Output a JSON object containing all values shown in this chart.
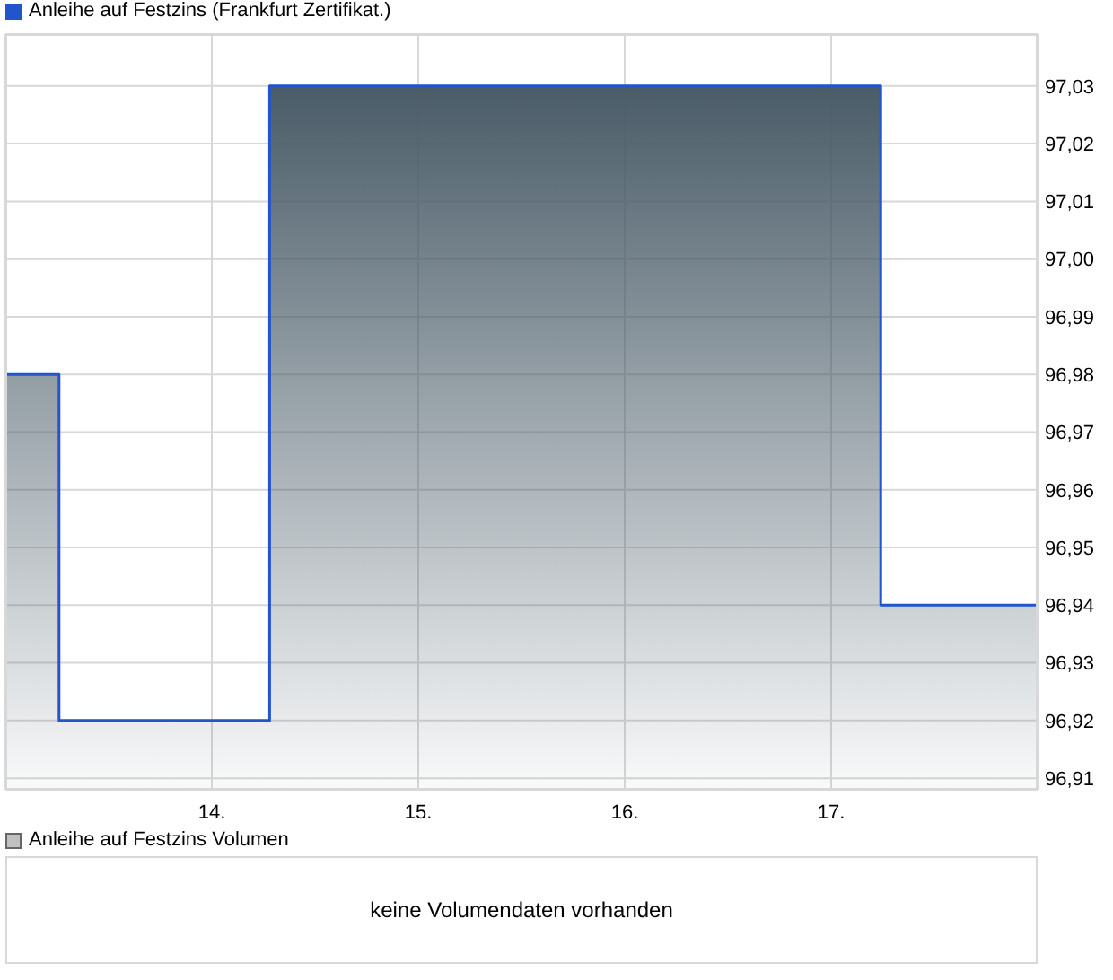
{
  "chart_data": [
    {
      "type": "area",
      "x": [
        13,
        13.26,
        13.26,
        14.28,
        14.28,
        17.24,
        17.24,
        18
      ],
      "series": [
        {
          "name": "Anleihe auf Festzins (Frankfurt Zertifikat.)",
          "color": "#2255cc",
          "values": [
            96.98,
            96.98,
            96.92,
            96.92,
            97.03,
            97.03,
            96.94,
            96.94
          ]
        }
      ],
      "xlim": [
        13,
        18
      ],
      "xticks": [
        {
          "value": 14,
          "label": "14."
        },
        {
          "value": 15,
          "label": "15."
        },
        {
          "value": 16,
          "label": "16."
        },
        {
          "value": 17,
          "label": "17."
        }
      ],
      "ylim": [
        96.908,
        97.039
      ],
      "yticks": [
        {
          "value": 96.91,
          "label": "96,91"
        },
        {
          "value": 96.92,
          "label": "96,92"
        },
        {
          "value": 96.93,
          "label": "96,93"
        },
        {
          "value": 96.94,
          "label": "96,94"
        },
        {
          "value": 96.95,
          "label": "96,95"
        },
        {
          "value": 96.96,
          "label": "96,96"
        },
        {
          "value": 96.97,
          "label": "96,97"
        },
        {
          "value": 96.98,
          "label": "96,98"
        },
        {
          "value": 96.99,
          "label": "96,99"
        },
        {
          "value": 97.0,
          "label": "97,00"
        },
        {
          "value": 97.01,
          "label": "97,01"
        },
        {
          "value": 97.02,
          "label": "97,02"
        },
        {
          "value": 97.03,
          "label": "97,03"
        }
      ],
      "line_style": "solid",
      "grid": true,
      "legend": "top left"
    },
    {
      "type": "other",
      "series": [
        {
          "name": "Anleihe auf Festzins Volumen",
          "color": "#c0c0c0"
        }
      ],
      "annotations": [
        "keine Volumendaten vorhanden"
      ],
      "legend": "top left"
    }
  ]
}
